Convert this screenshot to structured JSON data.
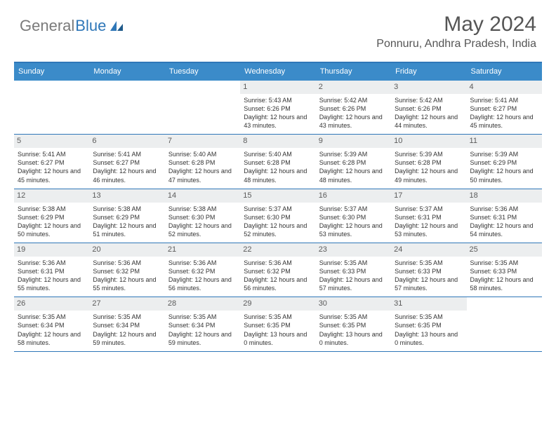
{
  "logo": {
    "general": "General",
    "blue": "Blue"
  },
  "title": "May 2024",
  "location": "Ponnuru, Andhra Pradesh, India",
  "colors": {
    "header_bg": "#3b8bc9",
    "border": "#2f77b8",
    "daynum_bg": "#eceeef",
    "text": "#333333",
    "title_text": "#555555"
  },
  "day_headers": [
    "Sunday",
    "Monday",
    "Tuesday",
    "Wednesday",
    "Thursday",
    "Friday",
    "Saturday"
  ],
  "weeks": [
    [
      {
        "n": "",
        "empty": true
      },
      {
        "n": "",
        "empty": true
      },
      {
        "n": "",
        "empty": true
      },
      {
        "n": "1",
        "sr": "5:43 AM",
        "ss": "6:26 PM",
        "dh": "12",
        "dm": "43"
      },
      {
        "n": "2",
        "sr": "5:42 AM",
        "ss": "6:26 PM",
        "dh": "12",
        "dm": "43"
      },
      {
        "n": "3",
        "sr": "5:42 AM",
        "ss": "6:26 PM",
        "dh": "12",
        "dm": "44"
      },
      {
        "n": "4",
        "sr": "5:41 AM",
        "ss": "6:27 PM",
        "dh": "12",
        "dm": "45"
      }
    ],
    [
      {
        "n": "5",
        "sr": "5:41 AM",
        "ss": "6:27 PM",
        "dh": "12",
        "dm": "45"
      },
      {
        "n": "6",
        "sr": "5:41 AM",
        "ss": "6:27 PM",
        "dh": "12",
        "dm": "46"
      },
      {
        "n": "7",
        "sr": "5:40 AM",
        "ss": "6:28 PM",
        "dh": "12",
        "dm": "47"
      },
      {
        "n": "8",
        "sr": "5:40 AM",
        "ss": "6:28 PM",
        "dh": "12",
        "dm": "48"
      },
      {
        "n": "9",
        "sr": "5:39 AM",
        "ss": "6:28 PM",
        "dh": "12",
        "dm": "48"
      },
      {
        "n": "10",
        "sr": "5:39 AM",
        "ss": "6:28 PM",
        "dh": "12",
        "dm": "49"
      },
      {
        "n": "11",
        "sr": "5:39 AM",
        "ss": "6:29 PM",
        "dh": "12",
        "dm": "50"
      }
    ],
    [
      {
        "n": "12",
        "sr": "5:38 AM",
        "ss": "6:29 PM",
        "dh": "12",
        "dm": "50"
      },
      {
        "n": "13",
        "sr": "5:38 AM",
        "ss": "6:29 PM",
        "dh": "12",
        "dm": "51"
      },
      {
        "n": "14",
        "sr": "5:38 AM",
        "ss": "6:30 PM",
        "dh": "12",
        "dm": "52"
      },
      {
        "n": "15",
        "sr": "5:37 AM",
        "ss": "6:30 PM",
        "dh": "12",
        "dm": "52"
      },
      {
        "n": "16",
        "sr": "5:37 AM",
        "ss": "6:30 PM",
        "dh": "12",
        "dm": "53"
      },
      {
        "n": "17",
        "sr": "5:37 AM",
        "ss": "6:31 PM",
        "dh": "12",
        "dm": "53"
      },
      {
        "n": "18",
        "sr": "5:36 AM",
        "ss": "6:31 PM",
        "dh": "12",
        "dm": "54"
      }
    ],
    [
      {
        "n": "19",
        "sr": "5:36 AM",
        "ss": "6:31 PM",
        "dh": "12",
        "dm": "55"
      },
      {
        "n": "20",
        "sr": "5:36 AM",
        "ss": "6:32 PM",
        "dh": "12",
        "dm": "55"
      },
      {
        "n": "21",
        "sr": "5:36 AM",
        "ss": "6:32 PM",
        "dh": "12",
        "dm": "56"
      },
      {
        "n": "22",
        "sr": "5:36 AM",
        "ss": "6:32 PM",
        "dh": "12",
        "dm": "56"
      },
      {
        "n": "23",
        "sr": "5:35 AM",
        "ss": "6:33 PM",
        "dh": "12",
        "dm": "57"
      },
      {
        "n": "24",
        "sr": "5:35 AM",
        "ss": "6:33 PM",
        "dh": "12",
        "dm": "57"
      },
      {
        "n": "25",
        "sr": "5:35 AM",
        "ss": "6:33 PM",
        "dh": "12",
        "dm": "58"
      }
    ],
    [
      {
        "n": "26",
        "sr": "5:35 AM",
        "ss": "6:34 PM",
        "dh": "12",
        "dm": "58"
      },
      {
        "n": "27",
        "sr": "5:35 AM",
        "ss": "6:34 PM",
        "dh": "12",
        "dm": "59"
      },
      {
        "n": "28",
        "sr": "5:35 AM",
        "ss": "6:34 PM",
        "dh": "12",
        "dm": "59"
      },
      {
        "n": "29",
        "sr": "5:35 AM",
        "ss": "6:35 PM",
        "dh": "13",
        "dm": "0"
      },
      {
        "n": "30",
        "sr": "5:35 AM",
        "ss": "6:35 PM",
        "dh": "13",
        "dm": "0"
      },
      {
        "n": "31",
        "sr": "5:35 AM",
        "ss": "6:35 PM",
        "dh": "13",
        "dm": "0"
      },
      {
        "n": "",
        "empty": true
      }
    ]
  ],
  "labels": {
    "sunrise": "Sunrise:",
    "sunset": "Sunset:",
    "daylight": "Daylight:",
    "hours": "hours",
    "and": "and",
    "minutes": "minutes."
  }
}
